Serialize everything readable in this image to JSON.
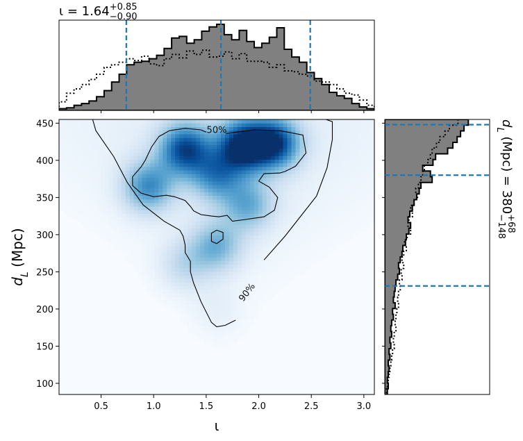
{
  "chart_data": [
    {
      "panel": "joint",
      "type": "heatmap",
      "xlabel": "ι",
      "ylabel": "d_L (Mpc)",
      "xlim": [
        0.1,
        3.1
      ],
      "ylim": [
        85,
        455
      ],
      "x_ticks": [
        "0.5",
        "1.0",
        "1.5",
        "2.0",
        "2.5",
        "3.0"
      ],
      "y_ticks": [
        "100",
        "150",
        "200",
        "250",
        "300",
        "350",
        "400",
        "450"
      ],
      "colormap": "Blues",
      "density_peaks": [
        {
          "x": 1.85,
          "y": 420,
          "weight": 1.0
        },
        {
          "x": 2.15,
          "y": 423,
          "weight": 0.9
        },
        {
          "x": 1.3,
          "y": 415,
          "weight": 0.85
        },
        {
          "x": 0.95,
          "y": 365,
          "weight": 0.6
        },
        {
          "x": 1.6,
          "y": 380,
          "weight": 0.55
        },
        {
          "x": 1.9,
          "y": 340,
          "weight": 0.45
        },
        {
          "x": 1.6,
          "y": 285,
          "weight": 0.45
        },
        {
          "x": 1.3,
          "y": 260,
          "weight": 0.25
        },
        {
          "x": 1.6,
          "y": 200,
          "weight": 0.08
        }
      ],
      "contours": [
        {
          "label": "50%",
          "paths": [
            [
              [
                1.69,
                436
              ],
              [
                1.95,
                441
              ],
              [
                2.2,
                440
              ],
              [
                2.42,
                434
              ],
              [
                2.45,
                410
              ],
              [
                2.35,
                392
              ],
              [
                2.25,
                385
              ],
              [
                2.2,
                383
              ],
              [
                2.05,
                382
              ],
              [
                2.0,
                372
              ],
              [
                2.1,
                364
              ],
              [
                2.18,
                350
              ],
              [
                2.15,
                333
              ],
              [
                2.05,
                324
              ],
              [
                1.85,
                320
              ],
              [
                1.75,
                318
              ],
              [
                1.7,
                326
              ],
              [
                1.62,
                324
              ],
              [
                1.55,
                325
              ],
              [
                1.45,
                327
              ],
              [
                1.38,
                332
              ],
              [
                1.35,
                338
              ],
              [
                1.3,
                346
              ],
              [
                1.2,
                351
              ],
              [
                1.12,
                353
              ],
              [
                1.0,
                351
              ],
              [
                0.88,
                356
              ],
              [
                0.8,
                366
              ],
              [
                0.8,
                378
              ],
              [
                0.88,
                391
              ],
              [
                0.92,
                400
              ],
              [
                0.98,
                418
              ],
              [
                1.05,
                432
              ],
              [
                1.15,
                440
              ],
              [
                1.3,
                443
              ],
              [
                1.45,
                441
              ],
              [
                1.5,
                438
              ]
            ]
          ],
          "closed_paths": [
            [
              [
                1.6,
                306
              ],
              [
                1.66,
                303
              ],
              [
                1.66,
                294
              ],
              [
                1.6,
                288
              ],
              [
                1.55,
                291
              ],
              [
                1.55,
                302
              ]
            ]
          ]
        },
        {
          "label": "90%",
          "paths": [
            [
              [
                2.05,
                266
              ],
              [
                2.25,
                298
              ],
              [
                2.4,
                325
              ],
              [
                2.55,
                352
              ],
              [
                2.65,
                390
              ],
              [
                2.7,
                428
              ],
              [
                2.7,
                452
              ],
              [
                2.6,
                457
              ]
            ],
            [
              [
                0.42,
                455
              ],
              [
                0.45,
                440
              ],
              [
                0.62,
                405
              ],
              [
                0.75,
                370
              ],
              [
                0.9,
                340
              ],
              [
                1.1,
                318
              ],
              [
                1.25,
                306
              ],
              [
                1.28,
                298
              ],
              [
                1.3,
                286
              ],
              [
                1.3,
                276
              ],
              [
                1.35,
                264
              ],
              [
                1.35,
                250
              ],
              [
                1.38,
                235
              ],
              [
                1.45,
                210
              ],
              [
                1.55,
                182
              ],
              [
                1.6,
                176
              ],
              [
                1.68,
                178
              ],
              [
                1.78,
                185
              ]
            ]
          ]
        }
      ]
    },
    {
      "panel": "top-marginal",
      "type": "bar",
      "title": "ι = 1.64",
      "title_upper": "+0.85",
      "title_lower": "−0.90",
      "median": 1.64,
      "credible_interval": [
        0.74,
        2.49
      ],
      "series": [
        {
          "name": "",
          "style": "filled-step",
          "values": [
            0.02,
            0.03,
            0.06,
            0.08,
            0.11,
            0.16,
            0.23,
            0.33,
            0.42,
            0.53,
            0.56,
            0.57,
            0.6,
            0.64,
            0.72,
            0.84,
            0.86,
            0.78,
            0.82,
            0.92,
            0.97,
            1.0,
            0.88,
            0.82,
            0.93,
            0.8,
            0.73,
            0.78,
            0.85,
            0.96,
            0.71,
            0.62,
            0.56,
            0.44,
            0.37,
            0.3,
            0.21,
            0.17,
            0.14,
            0.08,
            0.04,
            0.02
          ]
        },
        {
          "name": "",
          "style": "dotted-step",
          "values": [
            0.1,
            0.2,
            0.25,
            0.3,
            0.36,
            0.42,
            0.5,
            0.53,
            0.56,
            0.6,
            0.58,
            0.63,
            0.54,
            0.52,
            0.6,
            0.65,
            0.61,
            0.69,
            0.65,
            0.7,
            0.62,
            0.63,
            0.68,
            0.6,
            0.66,
            0.57,
            0.57,
            0.56,
            0.5,
            0.53,
            0.46,
            0.45,
            0.42,
            0.4,
            0.34,
            0.33,
            0.3,
            0.25,
            0.2,
            0.18,
            0.12,
            0.06
          ]
        }
      ]
    },
    {
      "panel": "right-marginal",
      "type": "bar",
      "title": "d_L (Mpc) = 380",
      "title_upper": "+68",
      "title_lower": "−148",
      "median": 380,
      "credible_interval": [
        231,
        448
      ],
      "series": [
        {
          "name": "",
          "style": "filled-step",
          "values": [
            0.97,
            0.92,
            0.88,
            0.84,
            0.79,
            0.73,
            0.59,
            0.56,
            0.44,
            0.53,
            0.55,
            0.42,
            0.4,
            0.37,
            0.34,
            0.32,
            0.29,
            0.27,
            0.3,
            0.28,
            0.25,
            0.24,
            0.21,
            0.2,
            0.18,
            0.16,
            0.17,
            0.15,
            0.13,
            0.12,
            0.11,
            0.1,
            0.12,
            0.09,
            0.1,
            0.08,
            0.07,
            0.08,
            0.06,
            0.07,
            0.05,
            0.06,
            0.04,
            0.05,
            0.04,
            0.03,
            0.04,
            0.03
          ]
        },
        {
          "name": "",
          "style": "dotted-step",
          "values": [
            0.85,
            0.75,
            0.7,
            0.64,
            0.6,
            0.55,
            0.53,
            0.5,
            0.46,
            0.44,
            0.42,
            0.39,
            0.36,
            0.38,
            0.34,
            0.3,
            0.32,
            0.28,
            0.27,
            0.3,
            0.26,
            0.23,
            0.25,
            0.22,
            0.2,
            0.22,
            0.19,
            0.2,
            0.17,
            0.18,
            0.16,
            0.15,
            0.16,
            0.14,
            0.13,
            0.12,
            0.13,
            0.11,
            0.1,
            0.11,
            0.09,
            0.08,
            0.07,
            0.06,
            0.05,
            0.04,
            0.03,
            0.02
          ]
        }
      ]
    }
  ],
  "colors": {
    "accent": "#1f77b4",
    "fill": "#808080",
    "line": "#000000"
  }
}
